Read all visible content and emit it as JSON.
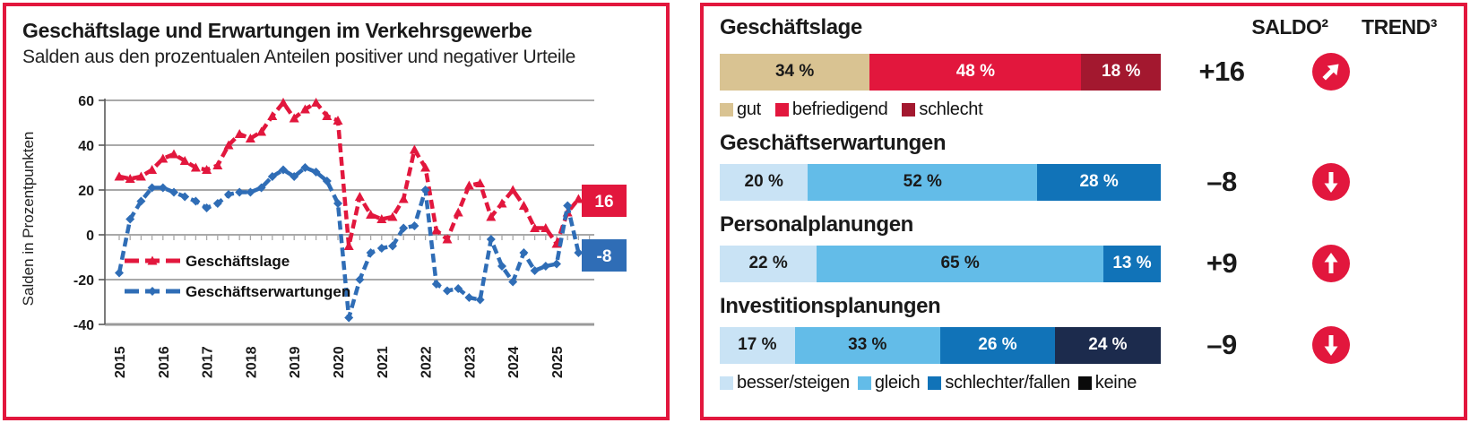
{
  "colors": {
    "panel_border": "#e2173d",
    "accent_red": "#e2173d",
    "dark_red": "#a3182f",
    "tan": "#d9c392",
    "light_blue": "#c9e3f5",
    "mid_blue": "#63bce8",
    "dark_blue": "#1173b8",
    "navy": "#1c2b4d",
    "line_blue": "#2f6db6",
    "grid_gray": "#a9a9a9"
  },
  "chart_data": [
    {
      "type": "line",
      "title": "Geschäftslage und Erwartungen im Verkehrsgewerbe",
      "subtitle": "Salden aus den prozentualen Anteilen positiver und negativer Urteile",
      "ylabel": "Salden in Prozentpunkten",
      "ylim": [
        -40,
        60
      ],
      "yticks": [
        60,
        40,
        20,
        0,
        -20,
        -40
      ],
      "grid": true,
      "legend_position": "inside-lower-left",
      "x_unit": "quarter",
      "x_start": "2015-Q1",
      "x_year_labels": [
        "2015",
        "2016",
        "2017",
        "2018",
        "2019",
        "2020",
        "2021",
        "2022",
        "2023",
        "2024",
        "2025"
      ],
      "series": [
        {
          "name": "Geschäftslage",
          "color": "#e2173d",
          "marker": "triangle",
          "dashed": true,
          "end_label": "16",
          "end_label_bg": "#e2173d",
          "values": [
            26,
            25,
            26,
            29,
            34,
            36,
            33,
            30,
            29,
            31,
            40,
            45,
            43,
            46,
            53,
            59,
            52,
            56,
            59,
            53,
            51,
            -5,
            17,
            9,
            7,
            8,
            16,
            38,
            30,
            2,
            -2,
            10,
            22,
            23,
            8,
            14,
            20,
            13,
            3,
            3,
            -4,
            10,
            16
          ]
        },
        {
          "name": "Geschäftserwartungen",
          "color": "#2f6db6",
          "marker": "diamond",
          "dashed": true,
          "end_label": "-8",
          "end_label_bg": "#2f6db6",
          "values": [
            -17,
            7,
            15,
            21,
            21,
            19,
            17,
            15,
            12,
            14,
            18,
            19,
            19,
            21,
            26,
            29,
            26,
            30,
            28,
            24,
            14,
            -37,
            -20,
            -8,
            -6,
            -5,
            3,
            4,
            20,
            -22,
            -25,
            -24,
            -28,
            -29,
            -2,
            -14,
            -21,
            -8,
            -16,
            -14,
            -13,
            13,
            -8
          ]
        }
      ]
    },
    {
      "type": "bar",
      "variant": "stacked-horizontal",
      "columns": {
        "saldo": "SALDO²",
        "trend": "TREND³"
      },
      "groups": [
        {
          "title": "Geschäftslage",
          "saldo": "+16",
          "trend": "up-right",
          "segments": [
            {
              "label": "34 %",
              "value": 34,
              "color": "#d9c392",
              "label_color": "#1a1a1a"
            },
            {
              "label": "48 %",
              "value": 48,
              "color": "#e2173d",
              "label_color": "#ffffff"
            },
            {
              "label": "18 %",
              "value": 18,
              "color": "#a3182f",
              "label_color": "#ffffff"
            }
          ],
          "legend": [
            {
              "label": "gut",
              "color": "#d9c392"
            },
            {
              "label": "befriedigend",
              "color": "#e2173d"
            },
            {
              "label": "schlecht",
              "color": "#a3182f"
            }
          ]
        },
        {
          "title": "Geschäftserwartungen",
          "saldo": "–8",
          "trend": "down",
          "segments": [
            {
              "label": "20 %",
              "value": 20,
              "color": "#c9e3f5",
              "label_color": "#1a1a1a"
            },
            {
              "label": "52 %",
              "value": 52,
              "color": "#63bce8",
              "label_color": "#1a1a1a"
            },
            {
              "label": "28 %",
              "value": 28,
              "color": "#1173b8",
              "label_color": "#ffffff"
            }
          ]
        },
        {
          "title": "Personalplanungen",
          "saldo": "+9",
          "trend": "up",
          "segments": [
            {
              "label": "22 %",
              "value": 22,
              "color": "#c9e3f5",
              "label_color": "#1a1a1a"
            },
            {
              "label": "65 %",
              "value": 65,
              "color": "#63bce8",
              "label_color": "#1a1a1a"
            },
            {
              "label": "13 %",
              "value": 13,
              "color": "#1173b8",
              "label_color": "#ffffff"
            }
          ]
        },
        {
          "title": "Investitionsplanungen",
          "saldo": "–9",
          "trend": "down",
          "segments": [
            {
              "label": "17 %",
              "value": 17,
              "color": "#c9e3f5",
              "label_color": "#1a1a1a"
            },
            {
              "label": "33 %",
              "value": 33,
              "color": "#63bce8",
              "label_color": "#1a1a1a"
            },
            {
              "label": "26 %",
              "value": 26,
              "color": "#1173b8",
              "label_color": "#ffffff"
            },
            {
              "label": "24 %",
              "value": 24,
              "color": "#1c2b4d",
              "label_color": "#ffffff"
            }
          ],
          "legend": [
            {
              "label": "besser/steigen",
              "color": "#c9e3f5"
            },
            {
              "label": "gleich",
              "color": "#63bce8"
            },
            {
              "label": "schlechter/fallen",
              "color": "#1173b8"
            },
            {
              "label": "keine",
              "color": "#0a0a0a"
            }
          ]
        }
      ]
    }
  ]
}
